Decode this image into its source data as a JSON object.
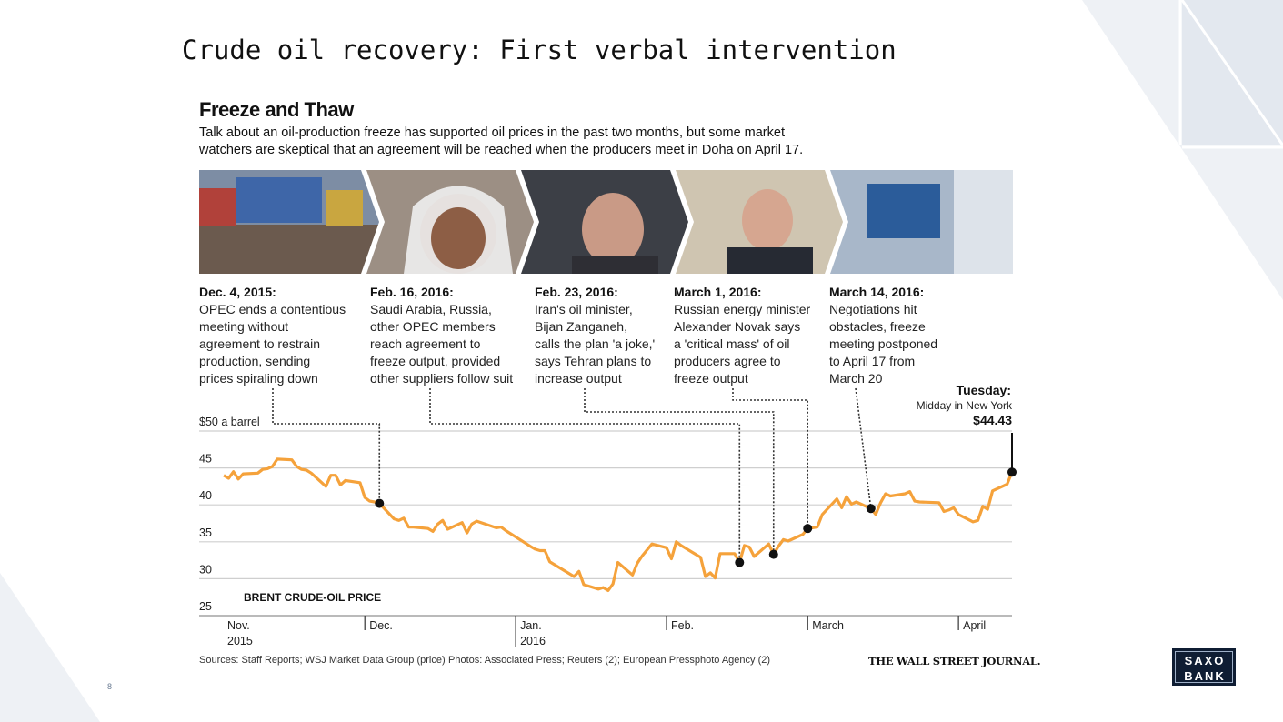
{
  "slide": {
    "title": "Crude oil recovery: First verbal intervention",
    "page_number": "8",
    "logo_lines": [
      "SAXO",
      "BANK"
    ]
  },
  "graphic": {
    "title": "Freeze and Thaw",
    "dek": "Talk about an oil-production freeze has supported oil prices in the past two months, but some market watchers are skeptical that an agreement will be reached when the producers meet in Doha on April 17.",
    "events": [
      {
        "date": "Dec. 4, 2015:",
        "text": "OPEC ends a contentious\nmeeting without\nagreement to restrain\nproduction, sending\nprices spiraling down"
      },
      {
        "date": "Feb. 16, 2016:",
        "text": "Saudi Arabia, Russia,\nother OPEC members\nreach agreement to\nfreeze output, provided\nother suppliers follow suit"
      },
      {
        "date": "Feb. 23, 2016:",
        "text": "Iran's oil minister,\nBijan Zanganeh,\ncalls the plan 'a joke,'\nsays Tehran plans to\nincrease output"
      },
      {
        "date": "March 1, 2016:",
        "text": "Russian energy minister\nAlexander Novak says\na 'critical mass' of oil\nproducers agree to\nfreeze output"
      },
      {
        "date": "March 14, 2016:",
        "text": "Negotiations hit\nobstacles, freeze\nmeeting postponed\nto April 17 from\nMarch 20"
      }
    ],
    "tuesday": {
      "label": "Tuesday:",
      "sub": "Midday in New York",
      "value": "$44.43"
    },
    "sources": "Sources: Staff Reports; WSJ Market Data Group (price)",
    "photos": "Photos: Associated Press; Reuters (2); European Pressphoto Agency (2)",
    "credit": "THE WALL STREET JOURNAL."
  },
  "colors": {
    "line": "#f5a23b",
    "grid": "#cfcfcf",
    "marker": "#111111",
    "deco": "#e8ecf2"
  },
  "chart_data": {
    "type": "line",
    "title": "BRENT CRUDE-OIL PRICE",
    "ylim": [
      25,
      50
    ],
    "y_ticks": [
      50,
      45,
      40,
      35,
      30,
      25
    ],
    "y_tick_labels": [
      "$50 a barrel",
      "45",
      "40",
      "35",
      "30",
      "25"
    ],
    "x_range": [
      "2015-11-02",
      "2016-04-12"
    ],
    "x_ticks": [
      {
        "date": "2015-11-02",
        "label": "Nov.\n2015"
      },
      {
        "date": "2015-12-01",
        "label": "Dec."
      },
      {
        "date": "2016-01-01",
        "label": "Jan.\n2016"
      },
      {
        "date": "2016-02-01",
        "label": "Feb."
      },
      {
        "date": "2016-03-01",
        "label": "March"
      },
      {
        "date": "2016-04-01",
        "label": "April"
      }
    ],
    "grid": true,
    "series": [
      {
        "points": [
          [
            "2015-11-02",
            44.0
          ],
          [
            "2015-11-03",
            43.6
          ],
          [
            "2015-11-04",
            44.5
          ],
          [
            "2015-11-05",
            43.5
          ],
          [
            "2015-11-06",
            44.2
          ],
          [
            "2015-11-09",
            44.3
          ],
          [
            "2015-11-10",
            44.8
          ],
          [
            "2015-11-11",
            44.9
          ],
          [
            "2015-11-12",
            45.2
          ],
          [
            "2015-11-13",
            46.2
          ],
          [
            "2015-11-16",
            46.1
          ],
          [
            "2015-11-17",
            45.2
          ],
          [
            "2015-11-18",
            44.8
          ],
          [
            "2015-11-19",
            44.7
          ],
          [
            "2015-11-20",
            44.3
          ],
          [
            "2015-11-23",
            42.5
          ],
          [
            "2015-11-24",
            44.0
          ],
          [
            "2015-11-25",
            44.0
          ],
          [
            "2015-11-26",
            42.7
          ],
          [
            "2015-11-27",
            43.3
          ],
          [
            "2015-11-30",
            43.0
          ],
          [
            "2015-12-01",
            41.0
          ],
          [
            "2015-12-02",
            40.5
          ],
          [
            "2015-12-03",
            40.4
          ],
          [
            "2015-12-04",
            40.2
          ],
          [
            "2015-12-07",
            38.1
          ],
          [
            "2015-12-08",
            37.9
          ],
          [
            "2015-12-09",
            38.2
          ],
          [
            "2015-12-10",
            37.0
          ],
          [
            "2015-12-11",
            37.0
          ],
          [
            "2015-12-14",
            36.8
          ],
          [
            "2015-12-15",
            36.4
          ],
          [
            "2015-12-16",
            37.4
          ],
          [
            "2015-12-17",
            37.9
          ],
          [
            "2015-12-18",
            36.7
          ],
          [
            "2015-12-21",
            37.6
          ],
          [
            "2015-12-22",
            36.2
          ],
          [
            "2015-12-23",
            37.4
          ],
          [
            "2015-12-24",
            37.8
          ],
          [
            "2015-12-28",
            36.9
          ],
          [
            "2015-12-29",
            37.0
          ],
          [
            "2015-12-30",
            36.5
          ],
          [
            "2016-01-04",
            34.4
          ],
          [
            "2016-01-05",
            34.0
          ],
          [
            "2016-01-06",
            33.8
          ],
          [
            "2016-01-07",
            33.8
          ],
          [
            "2016-01-08",
            32.3
          ],
          [
            "2016-01-11",
            31.1
          ],
          [
            "2016-01-12",
            30.7
          ],
          [
            "2016-01-13",
            30.3
          ],
          [
            "2016-01-14",
            31.0
          ],
          [
            "2016-01-15",
            29.2
          ],
          [
            "2016-01-18",
            28.6
          ],
          [
            "2016-01-19",
            28.8
          ],
          [
            "2016-01-20",
            28.4
          ],
          [
            "2016-01-21",
            29.3
          ],
          [
            "2016-01-22",
            32.2
          ],
          [
            "2016-01-25",
            30.5
          ],
          [
            "2016-01-26",
            32.1
          ],
          [
            "2016-01-27",
            33.1
          ],
          [
            "2016-01-28",
            33.9
          ],
          [
            "2016-01-29",
            34.7
          ],
          [
            "2016-02-01",
            34.2
          ],
          [
            "2016-02-02",
            32.7
          ],
          [
            "2016-02-03",
            35.0
          ],
          [
            "2016-02-04",
            34.5
          ],
          [
            "2016-02-05",
            34.1
          ],
          [
            "2016-02-08",
            32.9
          ],
          [
            "2016-02-09",
            30.3
          ],
          [
            "2016-02-10",
            30.8
          ],
          [
            "2016-02-11",
            30.1
          ],
          [
            "2016-02-12",
            33.4
          ],
          [
            "2016-02-15",
            33.4
          ],
          [
            "2016-02-16",
            32.2
          ],
          [
            "2016-02-17",
            34.5
          ],
          [
            "2016-02-18",
            34.3
          ],
          [
            "2016-02-19",
            33.0
          ],
          [
            "2016-02-22",
            34.7
          ],
          [
            "2016-02-23",
            33.3
          ],
          [
            "2016-02-24",
            34.4
          ],
          [
            "2016-02-25",
            35.3
          ],
          [
            "2016-02-26",
            35.1
          ],
          [
            "2016-02-29",
            36.0
          ],
          [
            "2016-03-01",
            36.8
          ],
          [
            "2016-03-02",
            36.9
          ],
          [
            "2016-03-03",
            37.0
          ],
          [
            "2016-03-04",
            38.7
          ],
          [
            "2016-03-07",
            40.8
          ],
          [
            "2016-03-08",
            39.6
          ],
          [
            "2016-03-09",
            41.1
          ],
          [
            "2016-03-10",
            40.1
          ],
          [
            "2016-03-11",
            40.4
          ],
          [
            "2016-03-14",
            39.5
          ],
          [
            "2016-03-15",
            38.7
          ],
          [
            "2016-03-16",
            40.3
          ],
          [
            "2016-03-17",
            41.5
          ],
          [
            "2016-03-18",
            41.2
          ],
          [
            "2016-03-21",
            41.5
          ],
          [
            "2016-03-22",
            41.8
          ],
          [
            "2016-03-23",
            40.5
          ],
          [
            "2016-03-24",
            40.4
          ],
          [
            "2016-03-28",
            40.3
          ],
          [
            "2016-03-29",
            39.1
          ],
          [
            "2016-03-30",
            39.3
          ],
          [
            "2016-03-31",
            39.6
          ],
          [
            "2016-04-01",
            38.7
          ],
          [
            "2016-04-04",
            37.7
          ],
          [
            "2016-04-05",
            37.9
          ],
          [
            "2016-04-06",
            39.8
          ],
          [
            "2016-04-07",
            39.4
          ],
          [
            "2016-04-08",
            41.9
          ],
          [
            "2016-04-11",
            42.8
          ],
          [
            "2016-04-12",
            44.43
          ]
        ]
      }
    ],
    "markers": [
      {
        "date": "2015-12-04",
        "value": 40.2
      },
      {
        "date": "2016-02-16",
        "value": 32.2
      },
      {
        "date": "2016-02-23",
        "value": 33.3
      },
      {
        "date": "2016-03-01",
        "value": 36.8
      },
      {
        "date": "2016-03-14",
        "value": 39.5
      },
      {
        "date": "2016-04-12",
        "value": 44.43
      }
    ]
  }
}
